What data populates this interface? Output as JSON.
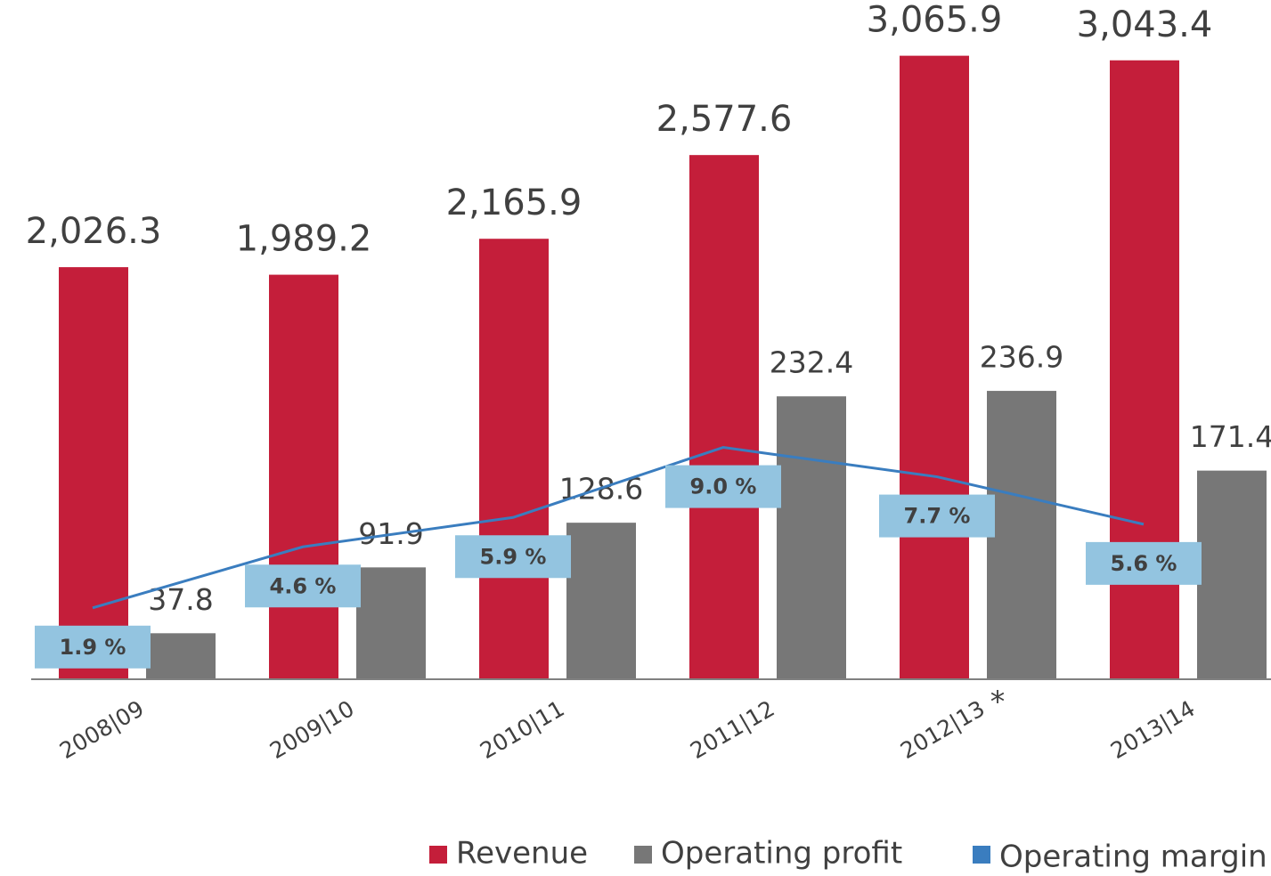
{
  "chart_data": {
    "type": "bar",
    "categories": [
      "2008|09",
      "2009|10",
      "2010|11",
      "2011|12",
      "2012|13",
      "2013|14"
    ],
    "annotations": [
      "*"
    ],
    "ylim": [
      0,
      3340
    ],
    "y2lim": [
      0,
      558
    ],
    "y3lim": [
      -1.26,
      28.8
    ],
    "series": [
      {
        "name": "Revenue",
        "color": "#c41e3a",
        "values": [
          2026.3,
          1989.2,
          2165.9,
          2577.6,
          3065.9,
          3043.4
        ],
        "value_labels": [
          "2,026.3",
          "1,989.2",
          "2,165.9",
          "2,577.6",
          "3,065.9",
          "3,043.4"
        ]
      },
      {
        "name": "Operating profit",
        "color": "#777777",
        "axis": "y2",
        "values": [
          37.8,
          91.9,
          128.6,
          232.4,
          236.9,
          171.4
        ]
      },
      {
        "name": "Operating margin",
        "color": "#3a7dbf",
        "type": "line",
        "axis": "y3",
        "label_color": "#93c4e0",
        "values": [
          1.9,
          4.6,
          5.9,
          9.0,
          7.7,
          5.6
        ],
        "value_labels": [
          "1.9 %",
          "4.6 %",
          "5.9 %",
          "9.0 %",
          "7.7 %",
          "5.6 %"
        ]
      }
    ]
  }
}
